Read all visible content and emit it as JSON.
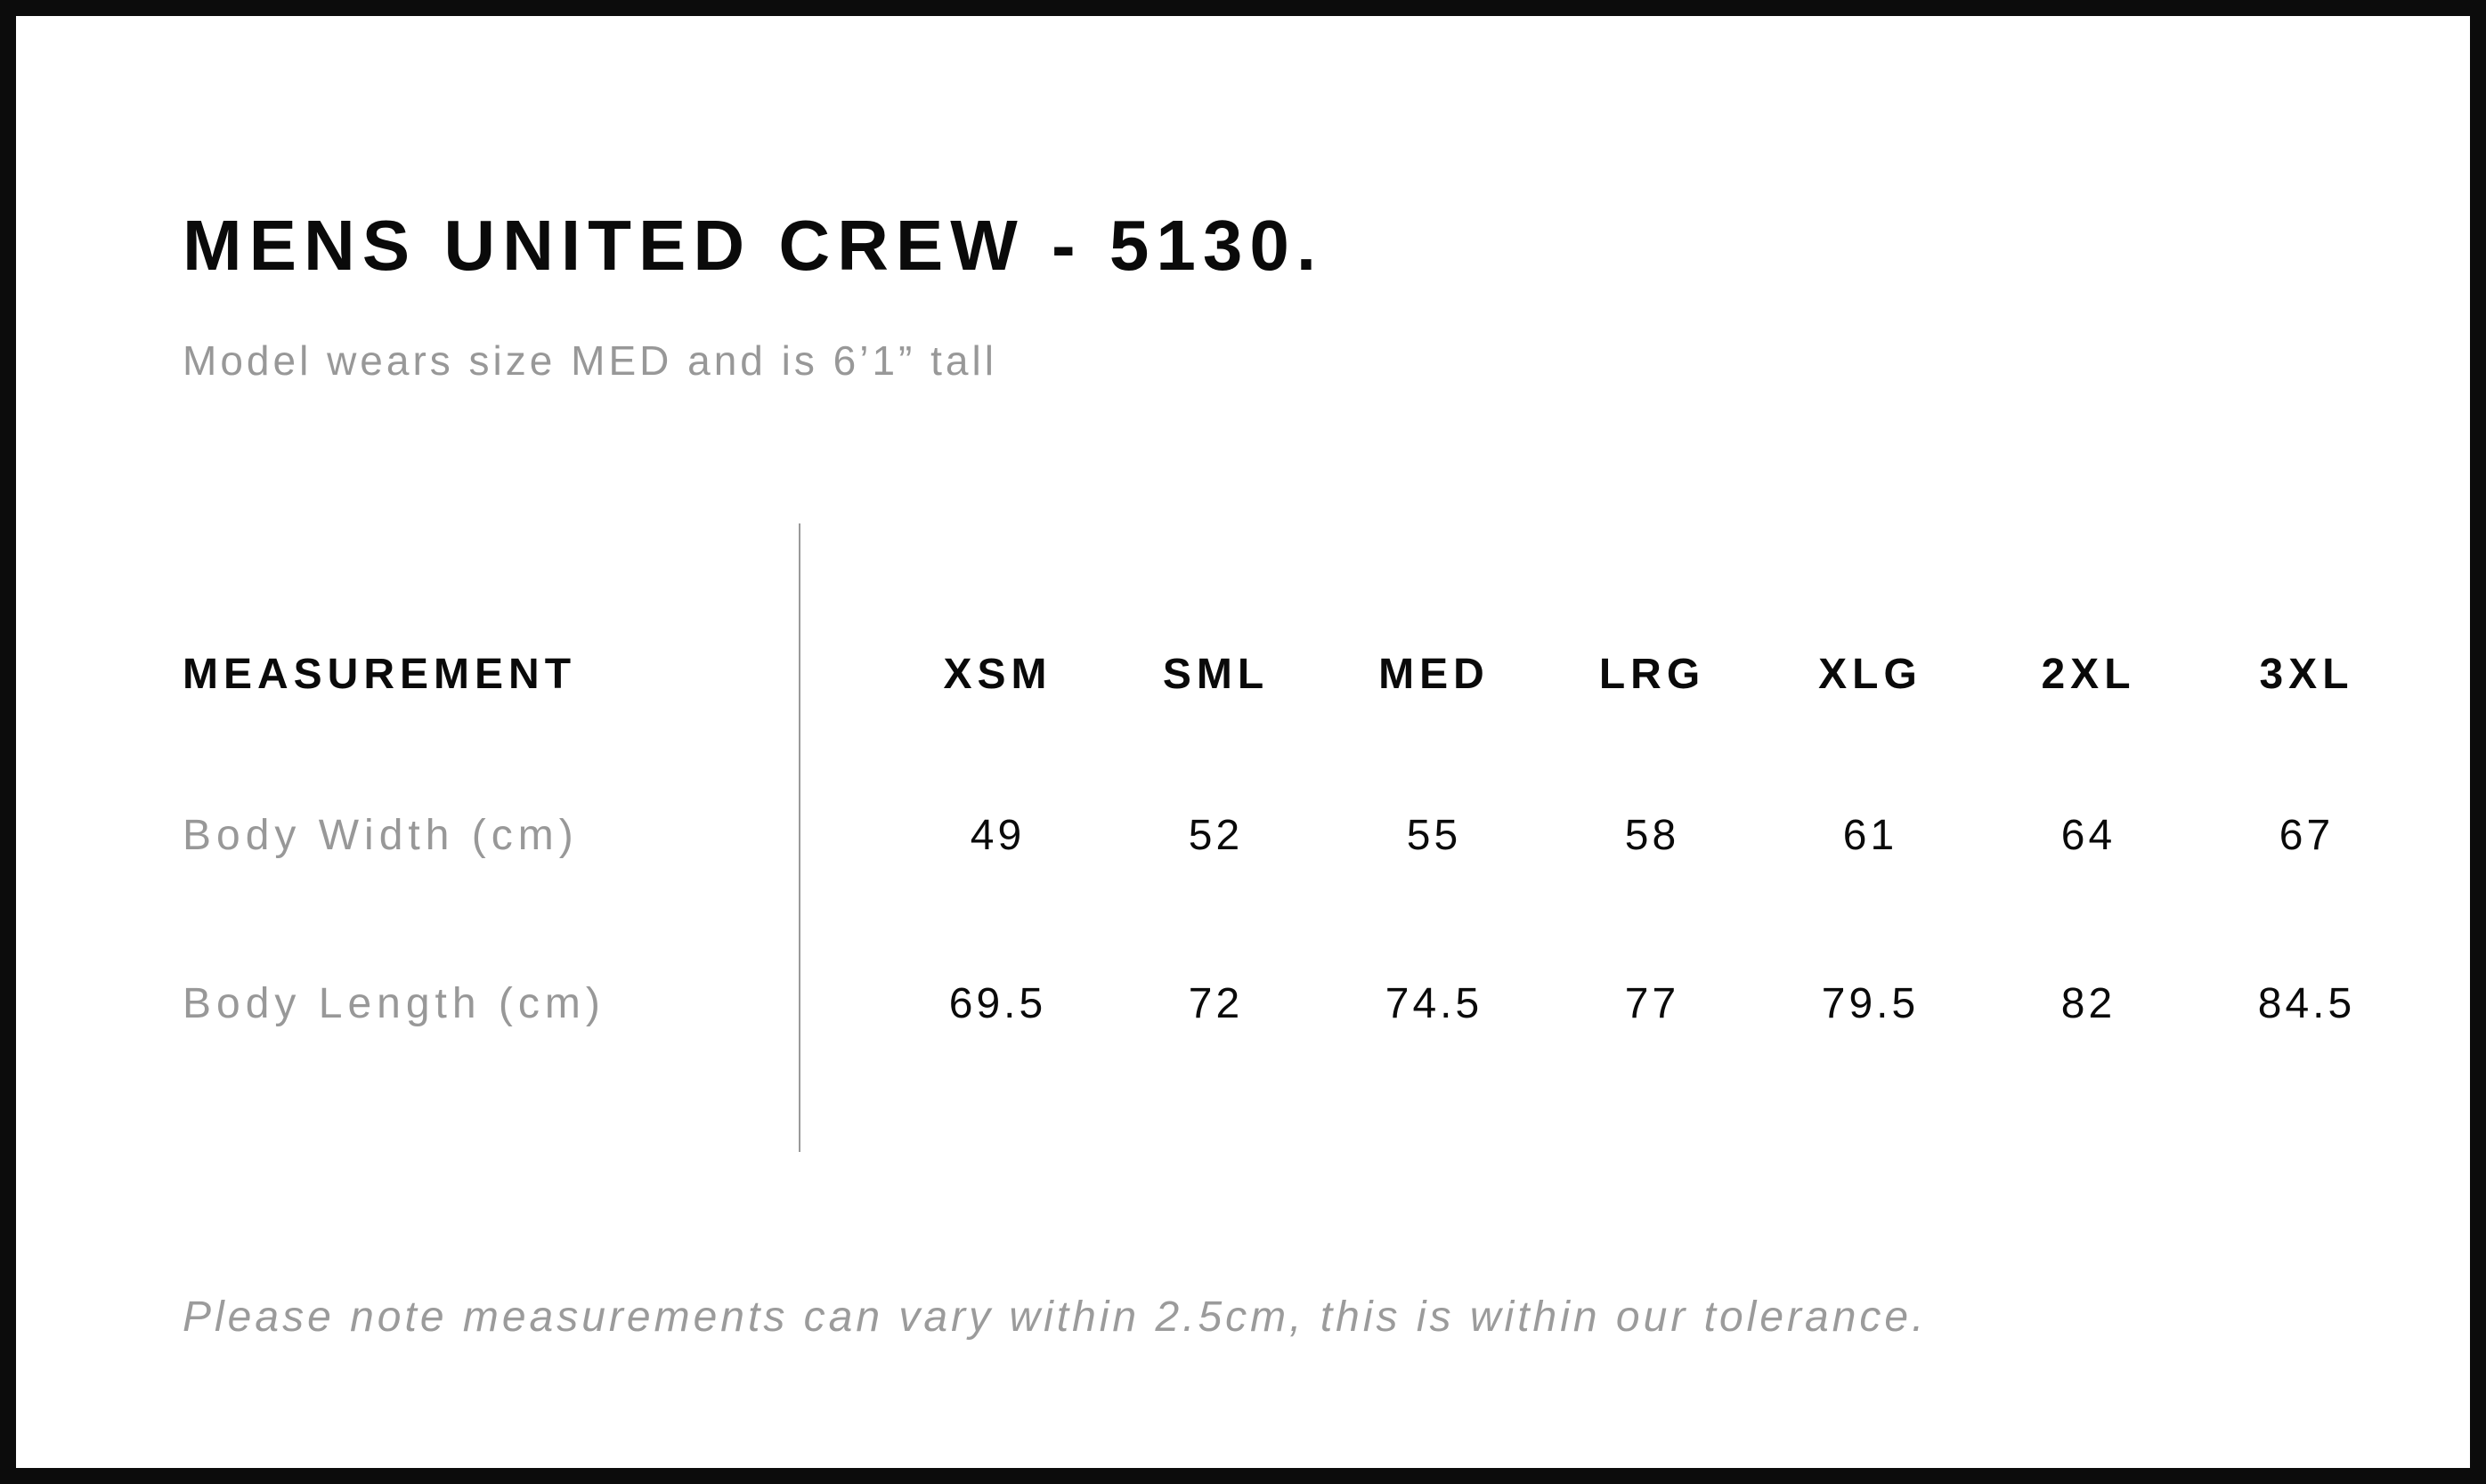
{
  "page": {
    "title": "MENS UNITED CREW - 5130.",
    "subtitle": "Model wears size MED and is 6’1” tall",
    "note": "Please note measurements can vary within 2.5cm, this is within our tolerance."
  },
  "table": {
    "measurement_header": "MEASUREMENT",
    "size_headers": [
      "XSM",
      "SML",
      "MED",
      "LRG",
      "XLG",
      "2XL",
      "3XL"
    ],
    "rows": [
      {
        "label": "Body Width (cm)",
        "values": [
          "49",
          "52",
          "55",
          "58",
          "61",
          "64",
          "67"
        ]
      },
      {
        "label": "Body Length (cm)",
        "values": [
          "69.5",
          "72",
          "74.5",
          "77",
          "79.5",
          "82",
          "84.5"
        ]
      }
    ]
  },
  "colors": {
    "background": "#ffffff",
    "frame": "#0c0c0c",
    "text_primary": "#0a0a0a",
    "text_secondary": "#989898",
    "divider": "#9a9a9a"
  }
}
